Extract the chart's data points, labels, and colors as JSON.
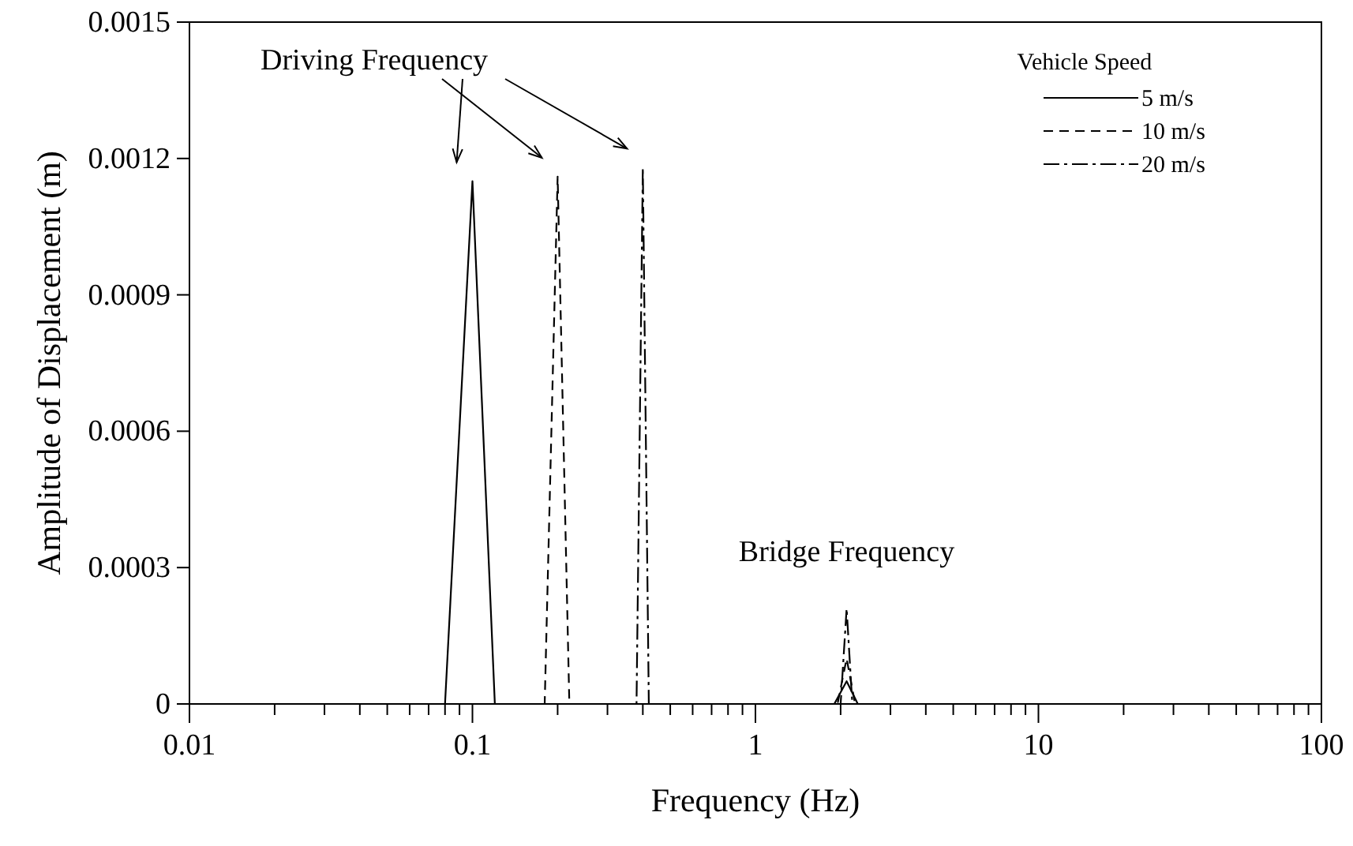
{
  "chart_data": {
    "type": "line",
    "xlabel": "Frequency (Hz)",
    "ylabel": "Amplitude of Displacement (m)",
    "log": "x",
    "legend_title": "Vehicle Speed",
    "legend": "top right",
    "grid": false,
    "xlim": [
      0.01,
      100
    ],
    "ylim": [
      0,
      0.0015
    ],
    "yticks": [
      0,
      0.0003,
      0.0006,
      0.0009,
      0.0012,
      0.0015
    ],
    "xticks": [
      0.01,
      {
        "value": 0.02,
        "label": null
      },
      {
        "value": 0.03,
        "label": null
      },
      {
        "value": 0.04,
        "label": null
      },
      {
        "value": 0.05,
        "label": null
      },
      {
        "value": 0.06,
        "label": null
      },
      {
        "value": 0.07,
        "label": null
      },
      {
        "value": 0.08,
        "label": null
      },
      {
        "value": 0.09,
        "label": null
      },
      0.1,
      {
        "value": 0.2,
        "label": null
      },
      {
        "value": 0.3,
        "label": null
      },
      {
        "value": 0.4,
        "label": null
      },
      {
        "value": 0.5,
        "label": null
      },
      {
        "value": 0.6,
        "label": null
      },
      {
        "value": 0.7,
        "label": null
      },
      {
        "value": 0.8,
        "label": null
      },
      {
        "value": 0.9,
        "label": null
      },
      1,
      {
        "value": 2,
        "label": null
      },
      {
        "value": 3,
        "label": null
      },
      {
        "value": 4,
        "label": null
      },
      {
        "value": 5,
        "label": null
      },
      {
        "value": 6,
        "label": null
      },
      {
        "value": 7,
        "label": null
      },
      {
        "value": 8,
        "label": null
      },
      {
        "value": 9,
        "label": null
      },
      10,
      {
        "value": 20,
        "label": null
      },
      {
        "value": 30,
        "label": null
      },
      {
        "value": 40,
        "label": null
      },
      {
        "value": 50,
        "label": null
      },
      {
        "value": 60,
        "label": null
      },
      {
        "value": 70,
        "label": null
      },
      {
        "value": 80,
        "label": null
      },
      {
        "value": 90,
        "label": null
      },
      100
    ],
    "series": [
      {
        "name": "5 m/s",
        "color": "#000000",
        "line_style": "solid",
        "x": [
          0.02,
          0.08,
          0.1,
          0.12,
          1.9,
          2.1,
          2.3,
          100
        ],
        "values": [
          0,
          0,
          0.00115,
          0,
          0,
          5e-05,
          0,
          0
        ]
      },
      {
        "name": "10 m/s",
        "color": "#000000",
        "line_style": "dashed",
        "x": [
          0.02,
          0.18,
          0.2,
          0.22,
          1.95,
          2.1,
          2.25,
          100
        ],
        "values": [
          0,
          0,
          0.00116,
          0,
          0,
          0.0001,
          0,
          0
        ]
      },
      {
        "name": "20 m/s",
        "color": "#000000",
        "line_style": "dashdot",
        "x": [
          0.02,
          0.38,
          0.4,
          0.42,
          2.0,
          2.1,
          2.2,
          100
        ],
        "values": [
          0,
          0,
          0.00118,
          0,
          0,
          0.00021,
          0,
          0
        ]
      }
    ],
    "annotations": [
      "Driving Frequency",
      {
        "text": "Bridge Frequency",
        "x": 2.1,
        "y": 0.00021
      }
    ]
  }
}
